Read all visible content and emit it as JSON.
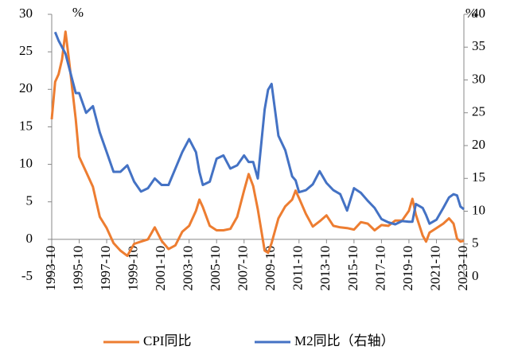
{
  "chart_data": {
    "type": "line",
    "x": [
      "1993-10",
      "1994-01",
      "1994-04",
      "1994-07",
      "1994-10",
      "1995-01",
      "1995-04",
      "1995-07",
      "1995-10",
      "1996-04",
      "1996-10",
      "1997-04",
      "1997-10",
      "1998-04",
      "1998-10",
      "1999-04",
      "1999-10",
      "2000-04",
      "2000-10",
      "2001-04",
      "2001-10",
      "2002-04",
      "2002-10",
      "2003-04",
      "2003-10",
      "2004-04",
      "2004-07",
      "2004-10",
      "2005-04",
      "2005-10",
      "2006-04",
      "2006-10",
      "2007-04",
      "2007-10",
      "2008-02",
      "2008-06",
      "2008-10",
      "2009-04",
      "2009-07",
      "2009-10",
      "2010-04",
      "2010-10",
      "2011-04",
      "2011-07",
      "2011-10",
      "2012-04",
      "2012-10",
      "2013-04",
      "2013-10",
      "2014-04",
      "2014-10",
      "2015-04",
      "2015-10",
      "2016-04",
      "2016-10",
      "2017-04",
      "2017-10",
      "2018-04",
      "2018-10",
      "2019-04",
      "2019-10",
      "2020-01",
      "2020-04",
      "2020-10",
      "2021-01",
      "2021-04",
      "2021-10",
      "2022-04",
      "2022-09",
      "2023-01",
      "2023-04",
      "2023-07",
      "2023-10"
    ],
    "series": [
      {
        "name": "CPI同比",
        "color": "#ed7d31",
        "values": [
          16,
          21,
          22,
          24,
          27.7,
          24,
          20,
          16,
          11,
          9,
          7,
          3,
          1.5,
          -0.5,
          -1.5,
          -2.2,
          -0.6,
          -0.3,
          0,
          1.6,
          -0.2,
          -1.3,
          -0.8,
          1,
          1.8,
          3.8,
          5.3,
          4.3,
          1.8,
          1.2,
          1.2,
          1.4,
          3,
          6.5,
          8.7,
          7.1,
          4,
          -1.5,
          -1.8,
          -0.5,
          2.8,
          4.4,
          5.3,
          6.5,
          5.5,
          3.4,
          1.7,
          2.4,
          3.2,
          1.8,
          1.6,
          1.5,
          1.3,
          2.3,
          2.1,
          1.2,
          1.9,
          1.8,
          2.5,
          2.5,
          3.8,
          5.4,
          3.3,
          0.5,
          -0.3,
          0.9,
          1.5,
          2.1,
          2.8,
          2.1,
          0.1,
          -0.3,
          -0.2
        ]
      },
      {
        "name": "M2同比（右轴）",
        "color": "#4472c4",
        "axis": "y2",
        "values": [
          null,
          37.3,
          36,
          35,
          34,
          32,
          30,
          28,
          28,
          25,
          26,
          22,
          19,
          16,
          16,
          17,
          14.5,
          13,
          13.5,
          15,
          14,
          14,
          16.5,
          19,
          21,
          19,
          16,
          14,
          14.5,
          18,
          18.5,
          16.5,
          17,
          18.5,
          17.5,
          17.5,
          15,
          25.5,
          28.5,
          29.4,
          21.5,
          19.3,
          15.3,
          14.7,
          12.9,
          13.2,
          14.1,
          16.1,
          14.3,
          13.2,
          12.6,
          10.1,
          13.5,
          12.8,
          11.6,
          10.5,
          8.8,
          8.3,
          8,
          8.5,
          8.4,
          8.4,
          11.1,
          10.5,
          9.4,
          8.1,
          8.7,
          10.5,
          12.1,
          12.6,
          12.4,
          10.7,
          10.3
        ]
      }
    ],
    "xlim": [
      "1993-10",
      "2023-10"
    ],
    "xticks": [
      "1993-10",
      "1995-10",
      "1997-10",
      "1999-10",
      "2001-10",
      "2003-10",
      "2005-10",
      "2007-10",
      "2009-10",
      "2011-10",
      "2013-10",
      "2015-10",
      "2017-10",
      "2019-10",
      "2021-10",
      "2023-10"
    ],
    "ylim": [
      -5,
      30
    ],
    "yticks": [
      -5,
      0,
      5,
      10,
      15,
      20,
      25,
      30
    ],
    "y2lim": [
      0,
      40
    ],
    "y2ticks": [
      0,
      5,
      10,
      15,
      20,
      25,
      30,
      35,
      40
    ],
    "y_label": "%",
    "y2_label": "%"
  }
}
